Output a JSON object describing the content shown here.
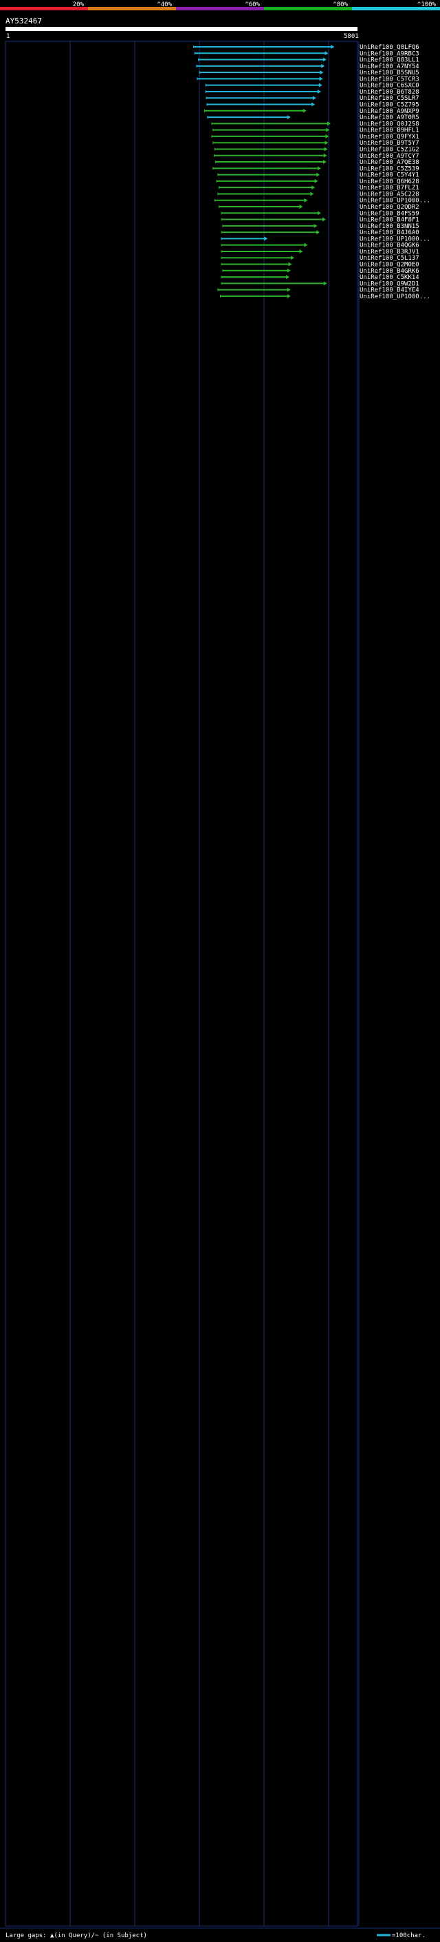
{
  "query": {
    "name": "AY532467",
    "start": "1",
    "end": "5801"
  },
  "identity_scale": {
    "ticks": [
      "20%",
      "^40%",
      "^60%",
      "^80%",
      "^100%"
    ],
    "colors": [
      "#e0202a",
      "#e07a16",
      "#8a1fb0",
      "#12b41a",
      "#20c8d8"
    ]
  },
  "legend": {
    "text": "Large gaps: ▲(in Query)/~ (in Subject)",
    "scale_label": "=100char."
  },
  "colors": {
    "background": "#000000",
    "frame": "#1a2f78",
    "cyan": "#22b8dc",
    "green": "#2cb42c",
    "magenta": "#c636c6"
  },
  "chart_data": {
    "type": "alignment",
    "x_range": [
      1,
      5801
    ],
    "hits": [
      {
        "id": "UniRef100_Q8LFQ6",
        "start": 3100,
        "end": 5420,
        "color": "cyan"
      },
      {
        "id": "UniRef100_A9RBC3",
        "start": 3120,
        "end": 5320,
        "color": "cyan"
      },
      {
        "id": "UniRef100_Q83LL1",
        "start": 3180,
        "end": 5290,
        "color": "cyan"
      },
      {
        "id": "UniRef100_A7NY54",
        "start": 3150,
        "end": 5260,
        "color": "cyan"
      },
      {
        "id": "UniRef100_B5SNU5",
        "start": 3200,
        "end": 5240,
        "color": "cyan"
      },
      {
        "id": "UniRef100_C5TCR3",
        "start": 3160,
        "end": 5230,
        "color": "cyan"
      },
      {
        "id": "UniRef100_C6SXC0",
        "start": 3300,
        "end": 5220,
        "color": "cyan"
      },
      {
        "id": "UniRef100_B6T828",
        "start": 3300,
        "end": 5200,
        "color": "cyan"
      },
      {
        "id": "UniRef100_C5SLR7",
        "start": 3310,
        "end": 5120,
        "color": "cyan"
      },
      {
        "id": "UniRef100_C5Z795",
        "start": 3320,
        "end": 5100,
        "color": "cyan"
      },
      {
        "id": "UniRef100_A9NXP9",
        "start": 3280,
        "end": 4960,
        "color": "green"
      },
      {
        "id": "UniRef100_A9T0R5",
        "start": 3330,
        "end": 4700,
        "color": "cyan"
      },
      {
        "id": "UniRef100_Q0J2S8",
        "start": 3400,
        "end": 5360,
        "color": "green"
      },
      {
        "id": "UniRef100_B9HFL1",
        "start": 3420,
        "end": 5340,
        "color": "green"
      },
      {
        "id": "UniRef100_Q9FYX1",
        "start": 3400,
        "end": 5330,
        "color": "green"
      },
      {
        "id": "UniRef100_B9T5Y7",
        "start": 3420,
        "end": 5320,
        "color": "green"
      },
      {
        "id": "UniRef100_C5Z1G2",
        "start": 3450,
        "end": 5310,
        "color": "green"
      },
      {
        "id": "UniRef100_A9TCY7",
        "start": 3440,
        "end": 5300,
        "color": "green"
      },
      {
        "id": "UniRef100_A7QE38",
        "start": 3460,
        "end": 5290,
        "color": "green"
      },
      {
        "id": "UniRef100_C5Z539",
        "start": 3420,
        "end": 5200,
        "color": "green"
      },
      {
        "id": "UniRef100_C5Y4Y1",
        "start": 3500,
        "end": 5180,
        "color": "green"
      },
      {
        "id": "UniRef100_Q6H628",
        "start": 3480,
        "end": 5150,
        "color": "green"
      },
      {
        "id": "UniRef100_B7FLZ1",
        "start": 3520,
        "end": 5100,
        "color": "green"
      },
      {
        "id": "UniRef100_A5C228",
        "start": 3500,
        "end": 5080,
        "color": "green"
      },
      {
        "id": "UniRef100_UP1000...",
        "start": 3450,
        "end": 4980,
        "color": "green"
      },
      {
        "id": "UniRef100_Q2QDR2",
        "start": 3520,
        "end": 4900,
        "color": "green"
      },
      {
        "id": "UniRef100_B4FS59",
        "start": 3560,
        "end": 5200,
        "color": "green"
      },
      {
        "id": "UniRef100_B4F8F1",
        "start": 3560,
        "end": 5280,
        "color": "green"
      },
      {
        "id": "UniRef100_B3NN15",
        "start": 3580,
        "end": 5140,
        "color": "green"
      },
      {
        "id": "UniRef100_B4J6A0",
        "start": 3560,
        "end": 5180,
        "color": "green"
      },
      {
        "id": "UniRef100_UP1000...",
        "start": 3560,
        "end": 4320,
        "color": "cyan"
      },
      {
        "id": "UniRef100_B4QGK6",
        "start": 3560,
        "end": 4980,
        "color": "green"
      },
      {
        "id": "UniRef100_B3RJV1",
        "start": 3560,
        "end": 4900,
        "color": "green"
      },
      {
        "id": "UniRef100_C5L137",
        "start": 3560,
        "end": 4760,
        "color": "green"
      },
      {
        "id": "UniRef100_Q2M0E0",
        "start": 3560,
        "end": 4720,
        "color": "green"
      },
      {
        "id": "UniRef100_B4GRK6",
        "start": 3580,
        "end": 4700,
        "color": "green"
      },
      {
        "id": "UniRef100_C5KK14",
        "start": 3560,
        "end": 4680,
        "color": "green"
      },
      {
        "id": "UniRef100_Q9W2D1",
        "start": 3560,
        "end": 5300,
        "color": "green"
      },
      {
        "id": "UniRef100_B4IYE4",
        "start": 3500,
        "end": 4700,
        "color": "green"
      },
      {
        "id": "UniRef100_UP1000...",
        "start": 3540,
        "end": 4700,
        "color": "green"
      }
    ]
  }
}
